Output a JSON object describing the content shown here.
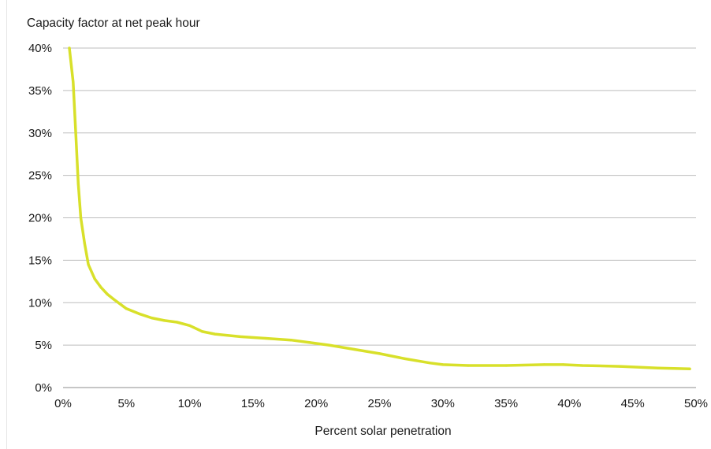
{
  "chart_data": {
    "type": "line",
    "title": "",
    "ylabel": "Capacity factor at net peak hour",
    "xlabel": "Percent solar penetration",
    "xlim": [
      0,
      50
    ],
    "ylim": [
      0,
      40
    ],
    "x_ticks": [
      0,
      5,
      10,
      15,
      20,
      25,
      30,
      35,
      40,
      45,
      50
    ],
    "y_ticks": [
      0,
      5,
      10,
      15,
      20,
      25,
      30,
      35,
      40
    ],
    "x_tick_labels": [
      "0%",
      "5%",
      "10%",
      "15%",
      "20%",
      "25%",
      "30%",
      "35%",
      "40%",
      "45%",
      "50%"
    ],
    "y_tick_labels": [
      "0%",
      "5%",
      "10%",
      "15%",
      "20%",
      "25%",
      "30%",
      "35%",
      "40%"
    ],
    "grid": "horizontal",
    "legend": "none",
    "series": [
      {
        "color": "#d8e02a",
        "points": [
          [
            0.5,
            40.0
          ],
          [
            0.8,
            36.0
          ],
          [
            1.0,
            30.0
          ],
          [
            1.2,
            24.0
          ],
          [
            1.4,
            20.0
          ],
          [
            1.7,
            17.0
          ],
          [
            2.0,
            14.5
          ],
          [
            2.5,
            12.8
          ],
          [
            3.0,
            11.8
          ],
          [
            3.5,
            11.0
          ],
          [
            4.0,
            10.4
          ],
          [
            5.0,
            9.3
          ],
          [
            6.0,
            8.7
          ],
          [
            7.0,
            8.2
          ],
          [
            8.0,
            7.9
          ],
          [
            9.0,
            7.7
          ],
          [
            10.0,
            7.3
          ],
          [
            11.0,
            6.6
          ],
          [
            12.0,
            6.3
          ],
          [
            14.0,
            6.0
          ],
          [
            16.0,
            5.8
          ],
          [
            18.0,
            5.6
          ],
          [
            19.5,
            5.3
          ],
          [
            21.0,
            5.0
          ],
          [
            23.0,
            4.5
          ],
          [
            25.0,
            4.0
          ],
          [
            27.0,
            3.4
          ],
          [
            29.0,
            2.9
          ],
          [
            30.0,
            2.7
          ],
          [
            32.0,
            2.6
          ],
          [
            35.0,
            2.6
          ],
          [
            38.0,
            2.7
          ],
          [
            39.5,
            2.7
          ],
          [
            41.0,
            2.6
          ],
          [
            44.0,
            2.5
          ],
          [
            47.0,
            2.3
          ],
          [
            49.5,
            2.2
          ]
        ]
      }
    ]
  }
}
